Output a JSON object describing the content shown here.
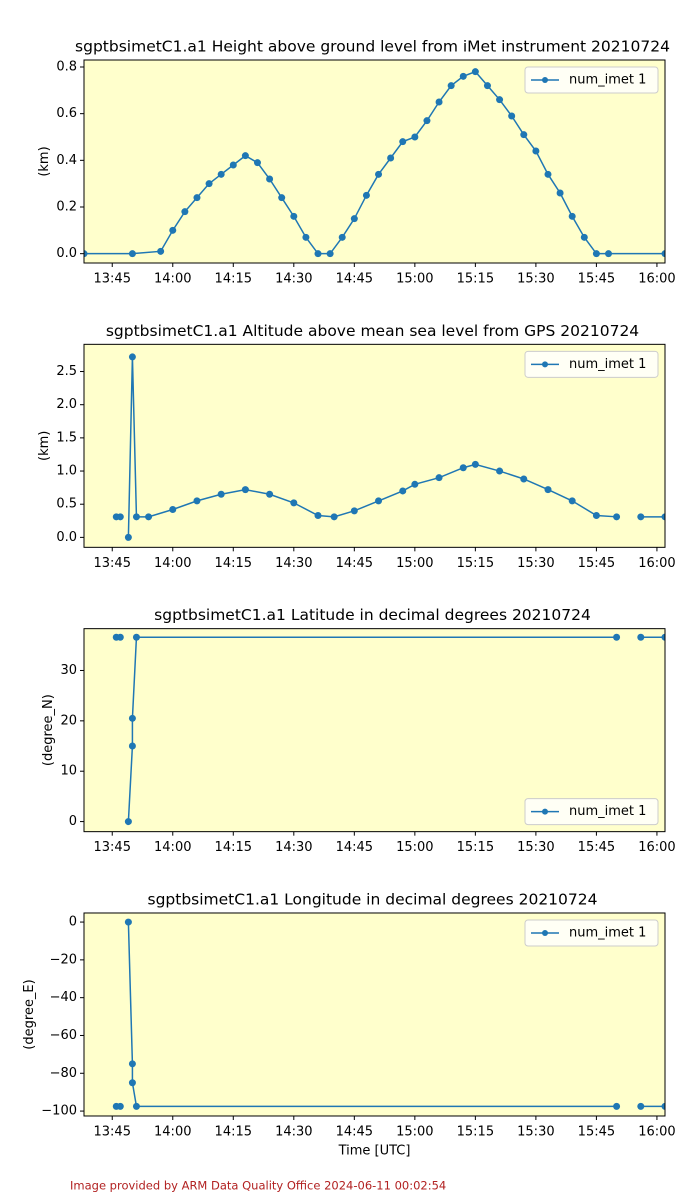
{
  "chart_data": [
    {
      "type": "line",
      "title": "sgptbsimetC1.a1 Height above ground level from iMet instrument 20210724",
      "ylabel": "(km)",
      "x": [
        "13:38",
        "13:50",
        "13:57",
        "14:00",
        "14:03",
        "14:06",
        "14:09",
        "14:12",
        "14:15",
        "14:18",
        "14:21",
        "14:24",
        "14:27",
        "14:30",
        "14:33",
        "14:36",
        "14:39",
        "14:42",
        "14:45",
        "14:48",
        "14:51",
        "14:54",
        "14:57",
        "15:00",
        "15:03",
        "15:06",
        "15:09",
        "15:12",
        "15:15",
        "15:18",
        "15:21",
        "15:24",
        "15:27",
        "15:30",
        "15:33",
        "15:36",
        "15:39",
        "15:42",
        "15:45",
        "15:48",
        "16:02"
      ],
      "series": [
        {
          "name": "num_imet 1",
          "color": "#1f77b4",
          "values": [
            0,
            0,
            0.01,
            0.1,
            0.18,
            0.24,
            0.3,
            0.34,
            0.38,
            0.42,
            0.39,
            0.32,
            0.24,
            0.16,
            0.07,
            0,
            0,
            0.07,
            0.15,
            0.25,
            0.34,
            0.41,
            0.48,
            0.5,
            0.57,
            0.65,
            0.72,
            0.76,
            0.78,
            0.72,
            0.66,
            0.59,
            0.51,
            0.44,
            0.34,
            0.26,
            0.16,
            0.07,
            0,
            0,
            0
          ]
        }
      ],
      "xlim": [
        "13:38",
        "16:02"
      ],
      "xticks": [
        "13:45",
        "14:00",
        "14:15",
        "14:30",
        "14:45",
        "15:00",
        "15:15",
        "15:30",
        "15:45",
        "16:00"
      ],
      "ylim": [
        -0.04,
        0.83
      ],
      "yticks": [
        {
          "value": 0,
          "label": "0.0"
        },
        {
          "value": 0.2,
          "label": "0.2"
        },
        {
          "value": 0.4,
          "label": "0.4"
        },
        {
          "value": 0.6,
          "label": "0.6"
        },
        {
          "value": 0.8,
          "label": "0.8"
        }
      ],
      "legend": "upper right"
    },
    {
      "type": "line",
      "title": "sgptbsimetC1.a1 Altitude above mean sea level from GPS 20210724",
      "ylabel": "(km)",
      "x": [
        "13:46",
        "13:47",
        "13:48",
        "13:49",
        "13:50",
        "13:51",
        "13:54",
        "14:00",
        "14:06",
        "14:12",
        "14:18",
        "14:24",
        "14:30",
        "14:36",
        "14:40",
        "14:45",
        "14:51",
        "14:57",
        "15:00",
        "15:06",
        "15:12",
        "15:15",
        "15:21",
        "15:27",
        "15:33",
        "15:39",
        "15:45",
        "15:50",
        "15:52",
        "15:56",
        "16:02"
      ],
      "series": [
        {
          "name": "num_imet 1",
          "color": "#1f77b4",
          "values": [
            0.31,
            0.31,
            null,
            0,
            2.72,
            0.31,
            0.31,
            0.42,
            0.55,
            0.65,
            0.72,
            0.65,
            0.52,
            0.33,
            0.31,
            0.4,
            0.55,
            0.7,
            0.8,
            0.9,
            1.05,
            1.1,
            1.0,
            0.88,
            0.72,
            0.55,
            0.33,
            0.31,
            null,
            0.31,
            0.31
          ]
        }
      ],
      "xlim": [
        "13:38",
        "16:02"
      ],
      "xticks": [
        "13:45",
        "14:00",
        "14:15",
        "14:30",
        "14:45",
        "15:00",
        "15:15",
        "15:30",
        "15:45",
        "16:00"
      ],
      "ylim": [
        -0.15,
        2.91
      ],
      "yticks": [
        {
          "value": 0,
          "label": "0.0"
        },
        {
          "value": 0.5,
          "label": "0.5"
        },
        {
          "value": 1,
          "label": "1.0"
        },
        {
          "value": 1.5,
          "label": "1.5"
        },
        {
          "value": 2,
          "label": "2.0"
        },
        {
          "value": 2.5,
          "label": "2.5"
        }
      ],
      "legend": "upper right"
    },
    {
      "type": "line",
      "title": "sgptbsimetC1.a1 Latitude in decimal degrees 20210724",
      "ylabel": "(degree_N)",
      "x": [
        "13:46",
        "13:47",
        "13:48",
        "13:49",
        "13:50",
        "13:50",
        "13:51",
        "15:50",
        "15:52",
        "15:56",
        "16:02"
      ],
      "series": [
        {
          "name": "num_imet 1",
          "color": "#1f77b4",
          "values": [
            36.6,
            36.6,
            null,
            0,
            15,
            20.5,
            36.6,
            36.6,
            null,
            36.6,
            36.6
          ]
        }
      ],
      "xlim": [
        "13:38",
        "16:02"
      ],
      "xticks": [
        "13:45",
        "14:00",
        "14:15",
        "14:30",
        "14:45",
        "15:00",
        "15:15",
        "15:30",
        "15:45",
        "16:00"
      ],
      "ylim": [
        -2,
        38.3
      ],
      "yticks": [
        0,
        10,
        20,
        30
      ],
      "legend": "lower right"
    },
    {
      "type": "line",
      "title": "sgptbsimetC1.a1 Longitude in decimal degrees 20210724",
      "ylabel": "(degree_E)",
      "xlabel": "Time [UTC]",
      "x": [
        "13:46",
        "13:47",
        "13:48",
        "13:49",
        "13:50",
        "13:50",
        "13:51",
        "15:50",
        "15:52",
        "15:56",
        "16:02"
      ],
      "series": [
        {
          "name": "num_imet 1",
          "color": "#1f77b4",
          "values": [
            -97.5,
            -97.5,
            null,
            0,
            -75,
            -85,
            -97.5,
            -97.5,
            null,
            -97.5,
            -97.5
          ]
        }
      ],
      "xlim": [
        "13:38",
        "16:02"
      ],
      "xticks": [
        "13:45",
        "14:00",
        "14:15",
        "14:30",
        "14:45",
        "15:00",
        "15:15",
        "15:30",
        "15:45",
        "16:00"
      ],
      "ylim": [
        -102.6,
        4.8
      ],
      "yticks": [
        {
          "value": -100,
          "label": "−100"
        },
        {
          "value": -80,
          "label": "−80"
        },
        {
          "value": -60,
          "label": "−60"
        },
        {
          "value": -40,
          "label": "−40"
        },
        {
          "value": -20,
          "label": "−20"
        },
        0
      ],
      "legend": "upper right"
    }
  ],
  "footer": "Image provided by ARM Data Quality Office 2024-06-11 00:02:54"
}
